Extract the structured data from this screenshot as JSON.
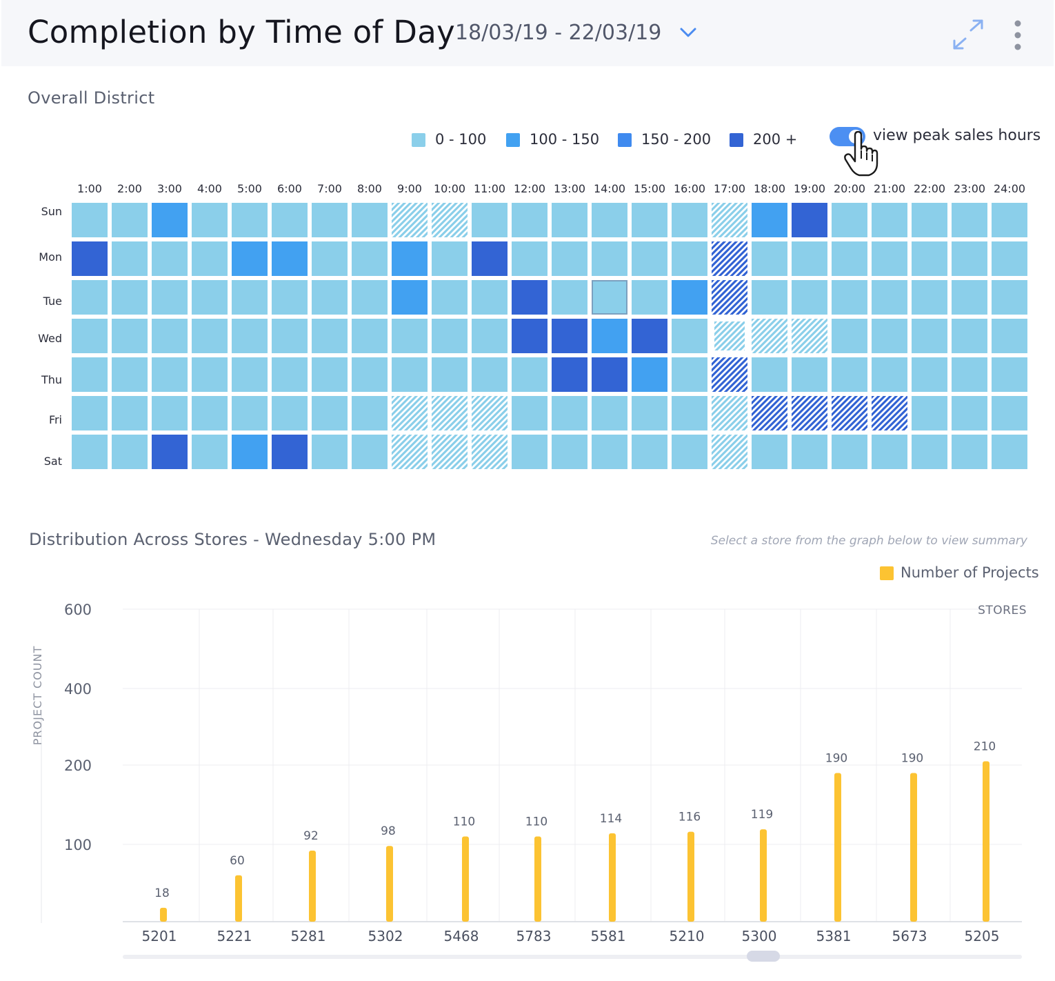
{
  "header": {
    "title": "Completion by Time of Day",
    "date_range": "18/03/19 - 22/03/19",
    "dropdown_icon": "chevron-down-icon",
    "expand_icon": "expand-icon",
    "menu_icon": "more-vertical-icon"
  },
  "heatmap": {
    "section_title": "Overall District",
    "legend": [
      {
        "label": "0 - 100",
        "color": "#8bcfea"
      },
      {
        "label": "100 - 150",
        "color": "#42a1f1"
      },
      {
        "label": "150 - 200",
        "color": "#3f8aef"
      },
      {
        "label": "200 +",
        "color": "#3364d4"
      }
    ],
    "toggle": {
      "label": "view peak sales hours",
      "on": true
    },
    "cursor_icon": "hand-pointer-icon",
    "hours": [
      "1:00",
      "2:00",
      "3:00",
      "4:00",
      "5:00",
      "6:00",
      "7:00",
      "8:00",
      "9:00",
      "10:00",
      "11:00",
      "12:00",
      "13:00",
      "14:00",
      "15:00",
      "16:00",
      "17:00",
      "18:00",
      "19:00",
      "20:00",
      "21:00",
      "22:00",
      "23:00",
      "24:00"
    ],
    "days": [
      "Sun",
      "Mon",
      "Tue",
      "Wed",
      "Thu",
      "Fri",
      "Sat"
    ],
    "levels": [
      [
        0,
        0,
        1,
        0,
        0,
        0,
        0,
        0,
        0,
        0,
        0,
        0,
        0,
        0,
        0,
        0,
        0,
        1,
        3,
        0,
        0,
        0,
        0,
        0
      ],
      [
        3,
        0,
        0,
        0,
        1,
        1,
        0,
        0,
        1,
        0,
        3,
        0,
        0,
        0,
        0,
        0,
        3,
        0,
        0,
        0,
        0,
        0,
        0,
        0
      ],
      [
        0,
        0,
        0,
        0,
        0,
        0,
        0,
        0,
        1,
        0,
        0,
        3,
        0,
        0,
        0,
        1,
        3,
        0,
        0,
        0,
        0,
        0,
        0,
        0
      ],
      [
        0,
        0,
        0,
        0,
        0,
        0,
        0,
        0,
        0,
        0,
        0,
        3,
        3,
        1,
        3,
        0,
        0,
        0,
        0,
        0,
        0,
        0,
        0,
        0
      ],
      [
        0,
        0,
        0,
        0,
        0,
        0,
        0,
        0,
        0,
        0,
        0,
        0,
        3,
        3,
        1,
        0,
        3,
        0,
        0,
        0,
        0,
        0,
        0,
        0
      ],
      [
        0,
        0,
        0,
        0,
        0,
        0,
        0,
        0,
        0,
        0,
        0,
        0,
        0,
        0,
        0,
        0,
        0,
        3,
        3,
        3,
        3,
        0,
        0,
        0
      ],
      [
        0,
        0,
        3,
        0,
        1,
        3,
        0,
        0,
        0,
        0,
        0,
        0,
        0,
        0,
        0,
        0,
        0,
        0,
        0,
        0,
        0,
        0,
        0,
        0
      ]
    ],
    "peak_hours": [
      [
        0,
        0,
        0,
        0,
        0,
        0,
        0,
        0,
        1,
        1,
        0,
        0,
        0,
        0,
        0,
        0,
        1,
        0,
        0,
        0,
        0,
        0,
        0,
        0
      ],
      [
        0,
        0,
        0,
        0,
        0,
        0,
        0,
        0,
        0,
        0,
        0,
        0,
        0,
        0,
        0,
        0,
        1,
        0,
        0,
        0,
        0,
        0,
        0,
        0
      ],
      [
        0,
        0,
        0,
        0,
        0,
        0,
        0,
        0,
        0,
        0,
        0,
        0,
        0,
        0,
        0,
        0,
        1,
        0,
        0,
        0,
        0,
        0,
        0,
        0
      ],
      [
        0,
        0,
        0,
        0,
        0,
        0,
        0,
        0,
        0,
        0,
        0,
        0,
        0,
        0,
        0,
        0,
        1,
        1,
        1,
        0,
        0,
        0,
        0,
        0
      ],
      [
        0,
        0,
        0,
        0,
        0,
        0,
        0,
        0,
        0,
        0,
        0,
        0,
        0,
        0,
        0,
        0,
        1,
        0,
        0,
        0,
        0,
        0,
        0,
        0
      ],
      [
        0,
        0,
        0,
        0,
        0,
        0,
        0,
        0,
        1,
        1,
        1,
        0,
        0,
        0,
        0,
        0,
        1,
        1,
        1,
        1,
        1,
        0,
        0,
        0
      ],
      [
        0,
        0,
        0,
        0,
        0,
        0,
        0,
        0,
        1,
        1,
        1,
        0,
        0,
        0,
        0,
        0,
        1,
        0,
        0,
        0,
        0,
        0,
        0,
        0
      ]
    ],
    "selected": {
      "day": "Wed",
      "hour": "17:00"
    },
    "hover": {
      "day": "Tue",
      "hour": "14:00"
    }
  },
  "distribution": {
    "title": "Distribution Across Stores - Wednesday 5:00 PM",
    "hint": "Select a store from the graph below to view summary"
  },
  "chart_data": {
    "type": "bar",
    "title": "Distribution Across Stores - Wednesday 5:00 PM",
    "series_name": "Number of Projects",
    "color": "#fcc332",
    "xlabel": "STORES",
    "ylabel": "PROJECT COUNT",
    "categories": [
      "5201",
      "5221",
      "5281",
      "5302",
      "5468",
      "5783",
      "5581",
      "5210",
      "5300",
      "5381",
      "5673",
      "5205"
    ],
    "values": [
      18,
      60,
      92,
      98,
      110,
      110,
      114,
      116,
      119,
      190,
      190,
      210
    ],
    "y_ticks": [
      {
        "label": "100",
        "value": 100
      },
      {
        "label": "200",
        "value": 200
      },
      {
        "label": "400",
        "value": 400
      },
      {
        "label": "600",
        "value": 600
      }
    ],
    "grid": true
  }
}
